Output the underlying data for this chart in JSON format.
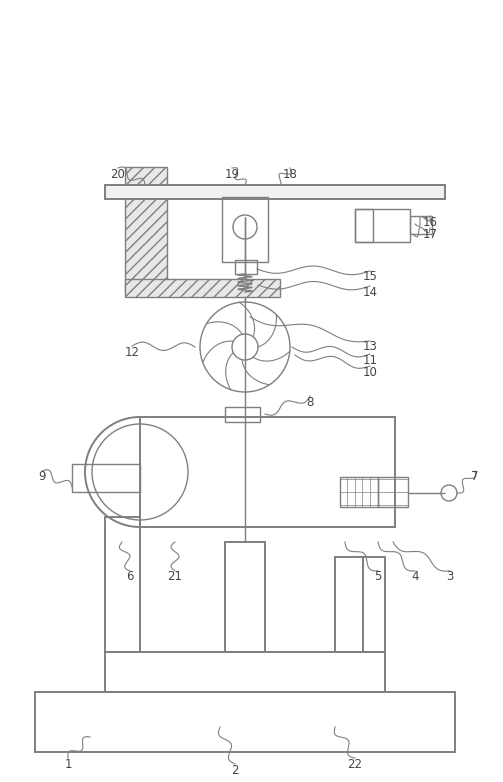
{
  "bg_color": "#ffffff",
  "lc": "#7f7f7f",
  "lw_thin": 0.8,
  "lw_med": 1.0,
  "lw_thick": 1.4,
  "label_fs": 8.5,
  "label_color": "#444444",
  "figsize": [
    5.03,
    7.82
  ],
  "dpi": 100,
  "xlim": [
    0,
    503
  ],
  "ylim": [
    0,
    782
  ]
}
